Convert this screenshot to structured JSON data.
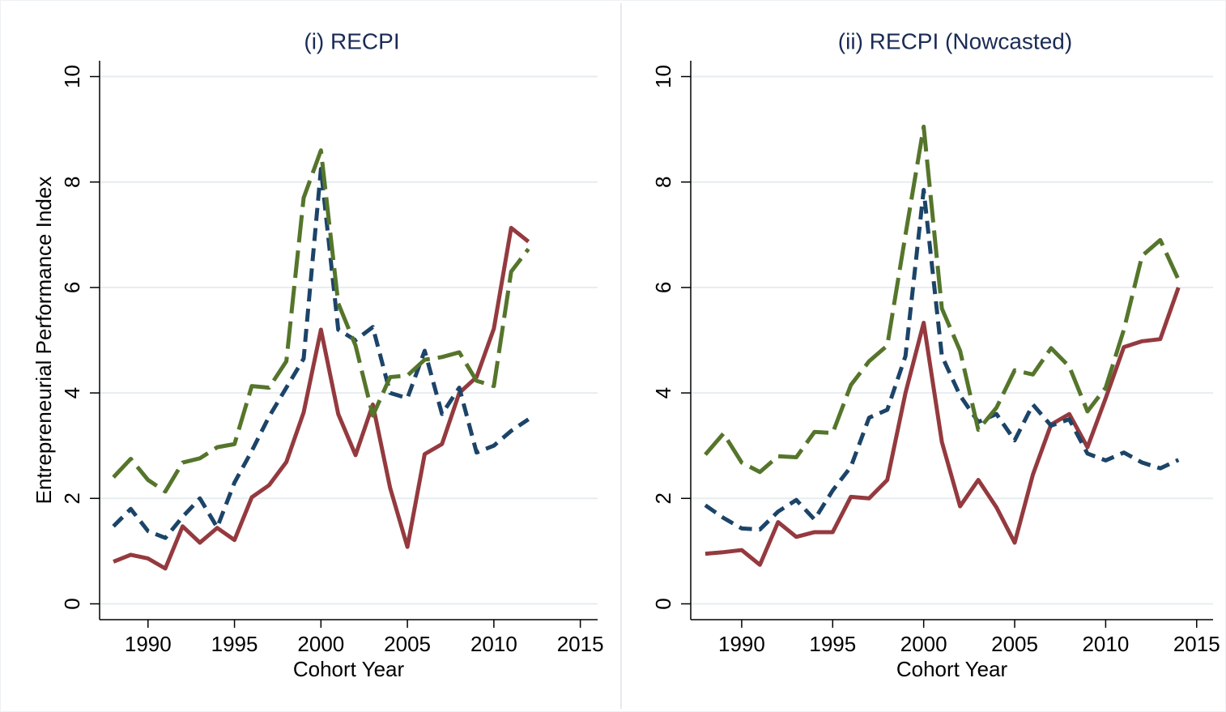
{
  "chart_data": [
    {
      "type": "line",
      "title": "(i) RECPI",
      "xlabel": "Cohort Year",
      "ylabel": "Entrepreneurial Performance Index",
      "x": [
        1988,
        1989,
        1990,
        1991,
        1992,
        1993,
        1994,
        1995,
        1996,
        1997,
        1998,
        1999,
        2000,
        2001,
        2002,
        2003,
        2004,
        2005,
        2006,
        2007,
        2008,
        2009,
        2010,
        2011,
        2012
      ],
      "series": [
        {
          "color": "#943a3f",
          "line_style": "solid",
          "values": [
            0.8,
            0.93,
            0.86,
            0.67,
            1.47,
            1.16,
            1.44,
            1.21,
            2.02,
            2.25,
            2.69,
            3.63,
            5.2,
            3.6,
            2.82,
            3.78,
            2.2,
            1.08,
            2.84,
            3.03,
            4.0,
            4.3,
            5.22,
            7.13,
            6.87
          ]
        },
        {
          "color": "#1c4468",
          "line_style": "dashed",
          "values": [
            1.47,
            1.8,
            1.38,
            1.25,
            1.65,
            2.0,
            1.45,
            2.3,
            2.9,
            3.55,
            4.1,
            4.65,
            8.25,
            5.2,
            5.0,
            5.25,
            4.0,
            3.9,
            4.8,
            3.6,
            4.1,
            2.87,
            3.0,
            3.28,
            3.5
          ]
        },
        {
          "color": "#55752b",
          "line_style": "longdash",
          "values": [
            2.4,
            2.75,
            2.35,
            2.13,
            2.68,
            2.76,
            2.97,
            3.03,
            4.13,
            4.1,
            4.6,
            7.7,
            8.6,
            5.7,
            4.9,
            3.57,
            4.3,
            4.33,
            4.63,
            4.68,
            4.77,
            4.23,
            4.13,
            6.3,
            6.73
          ]
        }
      ],
      "xlim": [
        1987.2,
        2016.0
      ],
      "xticks": [
        1990,
        1995,
        2000,
        2005,
        2010,
        2015
      ],
      "ylim": [
        -0.3,
        10.3
      ],
      "yticks": [
        0,
        2,
        4,
        6,
        8,
        10
      ],
      "grid": true
    },
    {
      "type": "line",
      "title": "(ii) RECPI (Nowcasted)",
      "xlabel": "Cohort Year",
      "x": [
        1988,
        1989,
        1990,
        1991,
        1992,
        1993,
        1994,
        1995,
        1996,
        1997,
        1998,
        1999,
        2000,
        2001,
        2002,
        2003,
        2004,
        2005,
        2006,
        2007,
        2008,
        2009,
        2010,
        2011,
        2012,
        2013,
        2014
      ],
      "series": [
        {
          "color": "#943a3f",
          "line_style": "solid",
          "values": [
            0.95,
            0.98,
            1.02,
            0.74,
            1.55,
            1.27,
            1.36,
            1.36,
            2.03,
            2.0,
            2.35,
            4.0,
            5.33,
            3.07,
            1.85,
            2.35,
            1.83,
            1.16,
            2.45,
            3.4,
            3.6,
            2.97,
            3.9,
            4.87,
            4.98,
            5.02,
            6.0
          ]
        },
        {
          "color": "#1c4468",
          "line_style": "dashed",
          "values": [
            1.87,
            1.63,
            1.43,
            1.41,
            1.75,
            1.97,
            1.6,
            2.15,
            2.6,
            3.53,
            3.68,
            4.7,
            7.85,
            4.7,
            3.95,
            3.45,
            3.6,
            3.1,
            3.78,
            3.38,
            3.5,
            2.85,
            2.72,
            2.87,
            2.68,
            2.57,
            2.73
          ]
        },
        {
          "color": "#55752b",
          "line_style": "longdash",
          "values": [
            2.83,
            3.23,
            2.68,
            2.5,
            2.8,
            2.78,
            3.26,
            3.24,
            4.15,
            4.6,
            4.9,
            7.0,
            9.05,
            5.6,
            4.8,
            3.3,
            3.72,
            4.43,
            4.35,
            4.85,
            4.5,
            3.65,
            4.1,
            5.2,
            6.6,
            6.9,
            6.15
          ]
        }
      ],
      "xlim": [
        1987.2,
        2015.9
      ],
      "xticks": [
        1990,
        1995,
        2000,
        2005,
        2010,
        2015
      ],
      "ylim": [
        -0.3,
        10.3
      ],
      "yticks": [
        0,
        2,
        4,
        6,
        8,
        10
      ],
      "grid": true
    }
  ]
}
